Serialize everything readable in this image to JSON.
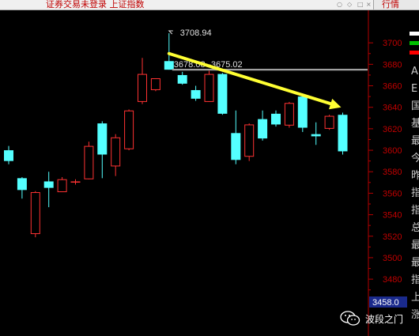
{
  "window": {
    "title": "证券交易未登录  上证指数",
    "quote_button": "行情"
  },
  "chart_data": {
    "type": "candlestick",
    "instrument": "上证指数",
    "ylim": [
      3458,
      3720
    ],
    "yticks": [
      3700,
      3680,
      3660,
      3640,
      3620,
      3600,
      3580,
      3560,
      3540,
      3520,
      3500,
      3480
    ],
    "last_price_label": "3458.0",
    "up_color": "#ff3232",
    "down_color": "#54ffff",
    "candles": [
      {
        "open": 3600,
        "close": 3590,
        "high": 3604,
        "low": 3587
      },
      {
        "open": 3574,
        "close": 3563,
        "high": 3575,
        "low": 3555
      },
      {
        "open": 3522,
        "close": 3561,
        "high": 3562,
        "low": 3519
      },
      {
        "open": 3571,
        "close": 3565,
        "high": 3580,
        "low": 3547
      },
      {
        "open": 3561,
        "close": 3573,
        "high": 3575,
        "low": 3561
      },
      {
        "open": 3571,
        "close": 3571,
        "high": 3573,
        "low": 3568
      },
      {
        "open": 3573,
        "close": 3604,
        "high": 3608,
        "low": 3573
      },
      {
        "open": 3625,
        "close": 3596,
        "high": 3627,
        "low": 3574
      },
      {
        "open": 3585,
        "close": 3612,
        "high": 3615,
        "low": 3576
      },
      {
        "open": 3601,
        "close": 3637,
        "high": 3638,
        "low": 3600
      },
      {
        "open": 3645,
        "close": 3671,
        "high": 3686,
        "low": 3643
      },
      {
        "open": 3656,
        "close": 3667,
        "high": 3667,
        "low": 3655
      },
      {
        "open": 3683,
        "close": 3675,
        "high": 3708.94,
        "low": 3675
      },
      {
        "open": 3670,
        "close": 3662,
        "high": 3673,
        "low": 3661
      },
      {
        "open": 3656,
        "close": 3648,
        "high": 3660,
        "low": 3646
      },
      {
        "open": 3645,
        "close": 3671,
        "high": 3674,
        "low": 3645
      },
      {
        "open": 3671,
        "close": 3634,
        "high": 3672,
        "low": 3633
      },
      {
        "open": 3616,
        "close": 3591,
        "high": 3637,
        "low": 3587
      },
      {
        "open": 3594,
        "close": 3624,
        "high": 3625,
        "low": 3590
      },
      {
        "open": 3629,
        "close": 3611,
        "high": 3637,
        "low": 3609
      },
      {
        "open": 3634,
        "close": 3624,
        "high": 3637,
        "low": 3622
      },
      {
        "open": 3623,
        "close": 3644,
        "high": 3645,
        "low": 3621
      },
      {
        "open": 3650,
        "close": 3621,
        "high": 3651,
        "low": 3617
      },
      {
        "open": 3615,
        "close": 3613,
        "high": 3626,
        "low": 3605
      },
      {
        "open": 3620,
        "close": 3632,
        "high": 3633,
        "low": 3619
      },
      {
        "open": 3633,
        "close": 3599,
        "high": 3635,
        "low": 3596
      }
    ],
    "annotations": {
      "high_label": "3708.94",
      "level_label": "3678.08--3675.02",
      "level_price": 3675.02
    },
    "trendline": {
      "color": "#ffff33",
      "from": [
        12,
        3690
      ],
      "to": [
        25,
        3640
      ]
    }
  },
  "side_panel": {
    "chars": [
      "A",
      "E",
      "国",
      "基",
      "最",
      "今",
      "昨",
      "指",
      "指",
      "总",
      "最",
      "最",
      "指",
      "上",
      "涨"
    ],
    "bar_colors": [
      "#ffffff",
      "#00c000",
      "#ff0000"
    ]
  },
  "watermark": {
    "text": "波段之门"
  }
}
